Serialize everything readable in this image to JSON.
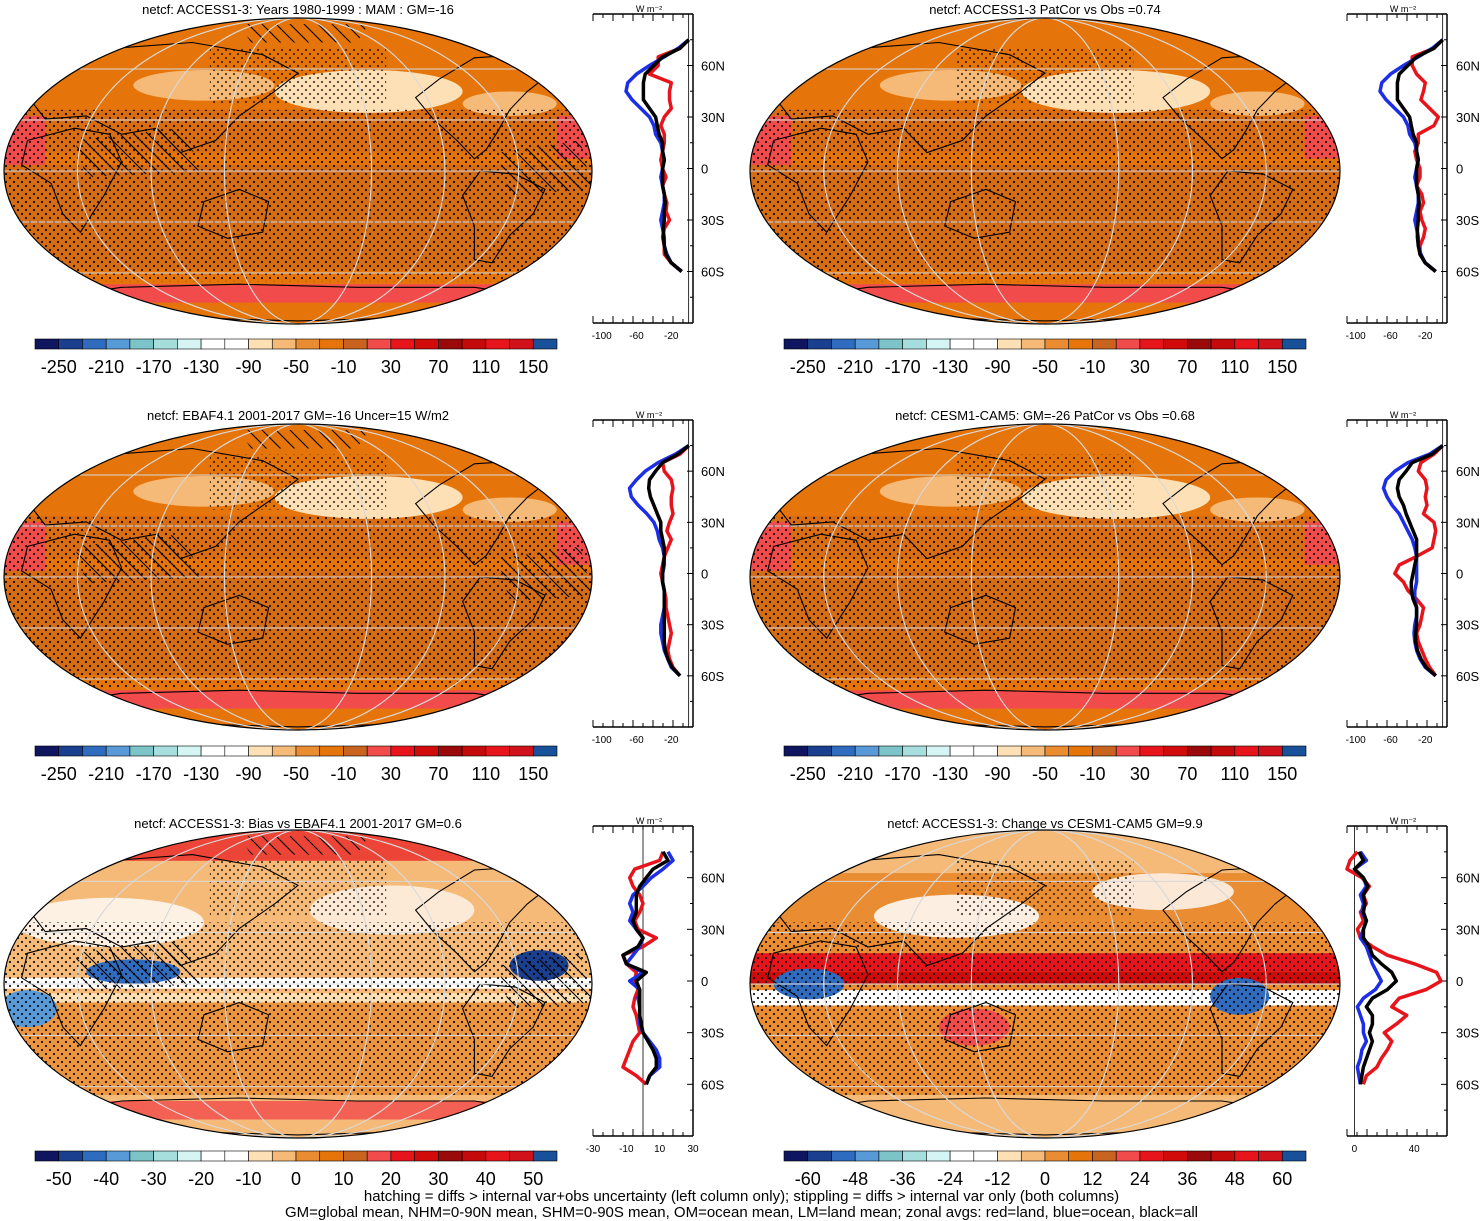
{
  "footer": {
    "line1": "hatching = diffs > internal var+obs uncertainty (left column only); stippling = diffs > internal var only (both columns)",
    "line2": "GM=global mean, NHM=0-90N mean, SHM=0-90S mean, OM=ocean mean, LM=land mean; zonal avgs: red=land, blue=ocean, black=all"
  },
  "colors": {
    "land_line": "#e8141b",
    "ocean_line": "#1c2ee6",
    "all_line": "#000000",
    "map_base": "#e5750a",
    "graticule": "#d9d9d9"
  },
  "lat_tick_labels": [
    "60N",
    "30N",
    "0",
    "30S",
    "60S"
  ],
  "zonal_unit_label": "W m⁻²",
  "colorbars": {
    "absolute": {
      "colors": [
        "#101560",
        "#1a3f8f",
        "#2f6cc0",
        "#5899d8",
        "#7cc4c8",
        "#a6dede",
        "#d5f4f4",
        "#ffffff",
        "#ffffff",
        "#fde0b5",
        "#f5ba78",
        "#e98c32",
        "#e5750a",
        "#c96420",
        "#f24b4b",
        "#e8141b",
        "#d10a0a",
        "#9a0a0a",
        "#c40a0a",
        "#e8141b",
        "#d2121a",
        "#18519a"
      ],
      "labels": [
        "-250",
        "-210",
        "-170",
        "-130",
        "-90",
        "-50",
        "-10",
        "30",
        "70",
        "110",
        "150"
      ]
    },
    "bias": {
      "colors": [
        "#101560",
        "#1a3f8f",
        "#2f6cc0",
        "#5899d8",
        "#7cc4c8",
        "#a6dede",
        "#d5f4f4",
        "#ffffff",
        "#ffffff",
        "#fde0b5",
        "#f5ba78",
        "#e98c32",
        "#e5750a",
        "#c96420",
        "#f24b4b",
        "#e8141b",
        "#d10a0a",
        "#9a0a0a",
        "#c40a0a",
        "#e8141b",
        "#d2121a",
        "#18519a"
      ],
      "labels": [
        "-50",
        "-40",
        "-30",
        "-20",
        "-10",
        "0",
        "10",
        "20",
        "30",
        "40",
        "50"
      ]
    },
    "change": {
      "colors": [
        "#101560",
        "#1a3f8f",
        "#2f6cc0",
        "#5899d8",
        "#7cc4c8",
        "#a6dede",
        "#d5f4f4",
        "#ffffff",
        "#ffffff",
        "#fde0b5",
        "#f5ba78",
        "#e98c32",
        "#e5750a",
        "#c96420",
        "#f24b4b",
        "#e8141b",
        "#d10a0a",
        "#9a0a0a",
        "#c40a0a",
        "#e8141b",
        "#d2121a",
        "#18519a"
      ],
      "labels": [
        "-60",
        "-48",
        "-36",
        "-24",
        "-12",
        "0",
        "12",
        "24",
        "36",
        "48",
        "60"
      ]
    }
  },
  "chart_data": [
    {
      "type": "heatmap",
      "title": "netcf: ACCESS1-3: Years 1980-1999 : MAM : GM=-16",
      "colorbar": "absolute",
      "style": "abs",
      "hatching": true,
      "zonal": {
        "x_tick_labels": [
          "-100",
          "-60",
          "-20"
        ],
        "xlim": [
          -110,
          5
        ],
        "lat": [
          75,
          70,
          65,
          60,
          55,
          50,
          45,
          40,
          35,
          30,
          25,
          20,
          15,
          10,
          5,
          0,
          -5,
          -10,
          -15,
          -20,
          -25,
          -30,
          -35,
          -40,
          -45,
          -50,
          -55,
          -60
        ],
        "land": [
          0,
          -10,
          -35,
          -35,
          -45,
          -20,
          -22,
          -22,
          -20,
          -28,
          -32,
          -28,
          -28,
          -30,
          -32,
          -30,
          -26,
          -30,
          -28,
          -25,
          -26,
          -22,
          -28,
          -30,
          -28,
          -28,
          -20,
          -8
        ],
        "ocean": [
          0,
          -12,
          -28,
          -45,
          -60,
          -70,
          -72,
          -65,
          -55,
          -45,
          -40,
          -38,
          -32,
          -30,
          -28,
          -30,
          -32,
          -30,
          -28,
          -28,
          -30,
          -32,
          -30,
          -28,
          -28,
          -25,
          -20,
          -8
        ],
        "all": [
          0,
          -10,
          -30,
          -40,
          -50,
          -52,
          -52,
          -52,
          -45,
          -38,
          -36,
          -34,
          -30,
          -30,
          -28,
          -30,
          -30,
          -30,
          -28,
          -27,
          -28,
          -28,
          -29,
          -29,
          -28,
          -26,
          -20,
          -8
        ]
      }
    },
    {
      "type": "heatmap",
      "title": "netcf: ACCESS1-3 PatCor vs Obs =0.74",
      "colorbar": "absolute",
      "style": "abs",
      "hatching": false,
      "zonal": {
        "x_tick_labels": [
          "-100",
          "-60",
          "-20"
        ],
        "xlim": [
          -110,
          5
        ],
        "lat": [
          75,
          70,
          65,
          60,
          55,
          50,
          45,
          40,
          35,
          30,
          25,
          20,
          15,
          10,
          5,
          0,
          -5,
          -10,
          -15,
          -20,
          -25,
          -30,
          -35,
          -40,
          -45,
          -50,
          -55,
          -60
        ],
        "land": [
          0,
          -10,
          -35,
          -35,
          -30,
          -20,
          -22,
          -25,
          -15,
          -5,
          -10,
          -28,
          -28,
          -32,
          -30,
          -26,
          -26,
          -30,
          -24,
          -22,
          -26,
          -24,
          -20,
          -22,
          -26,
          -26,
          -20,
          -8
        ],
        "ocean": [
          0,
          -12,
          -28,
          -45,
          -60,
          -70,
          -72,
          -65,
          -55,
          -45,
          -40,
          -38,
          -32,
          -30,
          -28,
          -30,
          -32,
          -30,
          -28,
          -28,
          -30,
          -32,
          -30,
          -28,
          -28,
          -25,
          -20,
          -8
        ],
        "all": [
          0,
          -10,
          -30,
          -40,
          -50,
          -52,
          -52,
          -52,
          -45,
          -38,
          -36,
          -34,
          -30,
          -30,
          -28,
          -30,
          -30,
          -30,
          -28,
          -27,
          -28,
          -28,
          -29,
          -29,
          -28,
          -26,
          -20,
          -8
        ]
      }
    },
    {
      "type": "heatmap",
      "title": "netcf: EBAF4.1 2001-2017 GM=-16 Uncer=15 W/m2",
      "colorbar": "absolute",
      "style": "abs",
      "hatching": true,
      "zonal": {
        "x_tick_labels": [
          "-100",
          "-60",
          "-20"
        ],
        "xlim": [
          -110,
          5
        ],
        "lat": [
          75,
          70,
          65,
          60,
          55,
          50,
          45,
          40,
          35,
          30,
          25,
          20,
          15,
          10,
          5,
          0,
          -5,
          -10,
          -15,
          -20,
          -25,
          -30,
          -35,
          -40,
          -45,
          -50,
          -55,
          -60
        ],
        "land": [
          0,
          -10,
          -30,
          -28,
          -20,
          -18,
          -20,
          -20,
          -18,
          -22,
          -25,
          -20,
          -24,
          -28,
          -30,
          -32,
          -30,
          -28,
          -26,
          -26,
          -24,
          -22,
          -20,
          -22,
          -24,
          -22,
          -18,
          -10
        ],
        "ocean": [
          0,
          -15,
          -35,
          -50,
          -60,
          -68,
          -66,
          -58,
          -48,
          -40,
          -36,
          -34,
          -30,
          -28,
          -28,
          -30,
          -30,
          -28,
          -28,
          -28,
          -30,
          -32,
          -32,
          -30,
          -28,
          -24,
          -20,
          -10
        ],
        "all": [
          0,
          -12,
          -30,
          -38,
          -45,
          -46,
          -44,
          -40,
          -36,
          -32,
          -32,
          -30,
          -28,
          -28,
          -29,
          -30,
          -30,
          -28,
          -28,
          -28,
          -28,
          -28,
          -28,
          -28,
          -27,
          -24,
          -19,
          -10
        ]
      }
    },
    {
      "type": "heatmap",
      "title": "netcf: CESM1-CAM5: GM=-26 PatCor vs Obs =0.68",
      "colorbar": "absolute",
      "style": "abs",
      "hatching": false,
      "zonal": {
        "x_tick_labels": [
          "-100",
          "-60",
          "-20"
        ],
        "xlim": [
          -110,
          5
        ],
        "lat": [
          75,
          70,
          65,
          60,
          55,
          50,
          45,
          40,
          35,
          30,
          25,
          20,
          15,
          10,
          5,
          0,
          -5,
          -10,
          -15,
          -20,
          -25,
          -30,
          -35,
          -40,
          -45,
          -50,
          -55,
          -60
        ],
        "land": [
          0,
          -10,
          -25,
          -28,
          -20,
          -18,
          -20,
          -18,
          -22,
          -10,
          -8,
          -10,
          -12,
          -30,
          -50,
          -55,
          -45,
          -40,
          -30,
          -22,
          -24,
          -26,
          -30,
          -28,
          -24,
          -20,
          -15,
          -8
        ],
        "ocean": [
          0,
          -15,
          -40,
          -55,
          -65,
          -68,
          -64,
          -58,
          -50,
          -45,
          -40,
          -35,
          -32,
          -30,
          -30,
          -30,
          -30,
          -32,
          -32,
          -30,
          -30,
          -32,
          -33,
          -32,
          -30,
          -26,
          -20,
          -8
        ],
        "all": [
          0,
          -12,
          -35,
          -42,
          -50,
          -52,
          -50,
          -45,
          -42,
          -38,
          -34,
          -30,
          -30,
          -30,
          -32,
          -34,
          -36,
          -36,
          -34,
          -30,
          -30,
          -30,
          -31,
          -31,
          -29,
          -25,
          -19,
          -8
        ]
      }
    },
    {
      "type": "heatmap",
      "title": "netcf: ACCESS1-3: Bias vs EBAF4.1 2001-2017 GM=0.6",
      "colorbar": "bias",
      "style": "bias",
      "hatching": true,
      "zonal": {
        "x_tick_labels": [
          "-30",
          "-10",
          "10",
          "30"
        ],
        "xlim": [
          -30,
          30
        ],
        "lat": [
          75,
          70,
          65,
          60,
          55,
          50,
          45,
          40,
          35,
          30,
          25,
          20,
          15,
          10,
          5,
          0,
          -5,
          -10,
          -15,
          -20,
          -25,
          -30,
          -35,
          -40,
          -45,
          -50,
          -55,
          -60
        ],
        "land": [
          12,
          10,
          -5,
          -8,
          -6,
          -2,
          0,
          -2,
          -5,
          -3,
          8,
          0,
          -12,
          -10,
          -4,
          -5,
          -3,
          -5,
          -6,
          -4,
          -3,
          -2,
          -6,
          -8,
          -10,
          -12,
          -4,
          2
        ],
        "ocean": [
          15,
          18,
          12,
          5,
          0,
          -6,
          -8,
          -6,
          -8,
          -4,
          0,
          -2,
          -6,
          -10,
          0,
          -8,
          -2,
          -3,
          -2,
          -2,
          -2,
          0,
          4,
          8,
          10,
          10,
          4,
          2
        ],
        "all": [
          12,
          15,
          6,
          2,
          -2,
          -4,
          -4,
          -4,
          -6,
          -4,
          0,
          -3,
          -12,
          -10,
          2,
          -4,
          -2,
          -2,
          -2,
          -2,
          -1,
          0,
          3,
          6,
          8,
          8,
          4,
          2
        ]
      }
    },
    {
      "type": "heatmap",
      "title": "netcf: ACCESS1-3: Change vs CESM1-CAM5 GM=9.9",
      "colorbar": "change",
      "style": "change",
      "hatching": false,
      "zonal": {
        "x_tick_labels": [
          "0",
          "40"
        ],
        "xlim": [
          -5,
          62
        ],
        "lat": [
          75,
          70,
          65,
          60,
          55,
          50,
          45,
          40,
          35,
          30,
          25,
          20,
          15,
          10,
          5,
          0,
          -5,
          -10,
          -15,
          -20,
          -25,
          -30,
          -35,
          -40,
          -45,
          -50,
          -55,
          -60
        ],
        "land": [
          2,
          -3,
          -5,
          5,
          10,
          6,
          8,
          4,
          6,
          2,
          4,
          12,
          22,
          40,
          55,
          58,
          48,
          30,
          25,
          35,
          28,
          20,
          25,
          22,
          18,
          15,
          8,
          6
        ],
        "ocean": [
          4,
          8,
          0,
          6,
          8,
          4,
          6,
          5,
          8,
          6,
          4,
          8,
          10,
          12,
          15,
          18,
          14,
          6,
          2,
          4,
          6,
          6,
          8,
          5,
          4,
          2,
          3,
          4
        ],
        "all": [
          3,
          6,
          0,
          6,
          9,
          6,
          7,
          6,
          8,
          6,
          6,
          10,
          12,
          18,
          25,
          28,
          22,
          12,
          8,
          12,
          12,
          10,
          12,
          10,
          8,
          6,
          5,
          4
        ]
      }
    }
  ]
}
